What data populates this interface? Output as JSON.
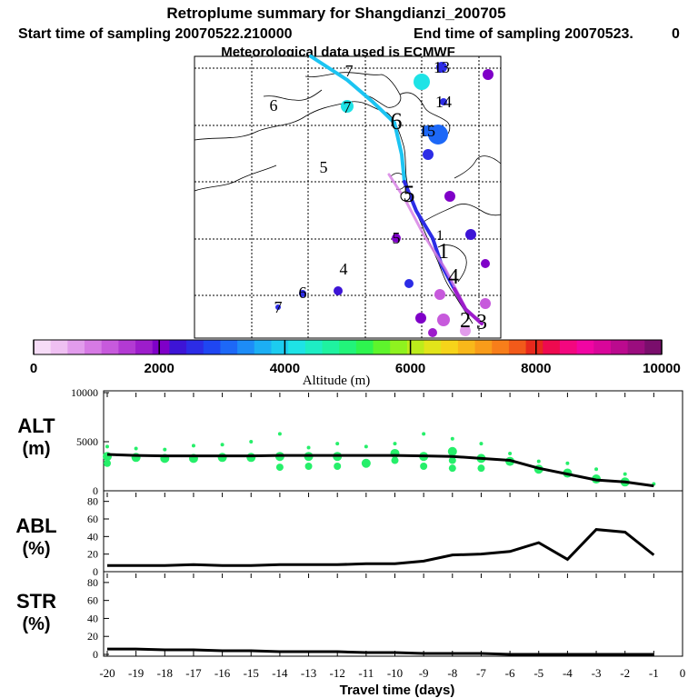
{
  "title": "Retroplume summary for Shangdianzi_200705",
  "subtitle_start": "Start time of sampling 20070522.210000",
  "subtitle_end": "End time of sampling 20070523.",
  "subtitle_end_tail": "0",
  "met_note": "Meteorological data used is ECMWF",
  "chart_data": [
    {
      "type": "map",
      "title": "Retroplume trajectory (day markers = days back)",
      "day_labels": [
        {
          "text": "7",
          "where": "top-left"
        },
        {
          "text": "6",
          "where": "upper-left"
        },
        {
          "text": "7",
          "where": "upper-left"
        },
        {
          "text": "6",
          "where": "upper-center"
        },
        {
          "text": "5",
          "where": "center-left"
        },
        {
          "text": "5",
          "where": "center"
        },
        {
          "text": "4",
          "where": "lower-left"
        },
        {
          "text": "6",
          "where": "lower-left"
        },
        {
          "text": "7",
          "where": "bottom-left"
        },
        {
          "text": "1",
          "where": "center-right"
        },
        {
          "text": "1",
          "where": "center-right"
        },
        {
          "text": "4",
          "where": "lower-right"
        },
        {
          "text": "2",
          "where": "bottom-right"
        },
        {
          "text": "3",
          "where": "bottom-right"
        },
        {
          "text": "13",
          "where": "top-right"
        },
        {
          "text": "14",
          "where": "top-right"
        },
        {
          "text": "15",
          "where": "upper-right"
        },
        {
          "text": "5",
          "where": "lower-center"
        }
      ]
    },
    {
      "type": "colorbar",
      "xlabel": "Altitude (m)",
      "ticks": [
        0,
        2000,
        4000,
        6000,
        8000,
        10000
      ],
      "range": [
        0,
        10000
      ],
      "colors": [
        "#f6dcf7",
        "#efc0f2",
        "#e29cec",
        "#d67ae4",
        "#c75adc",
        "#b33ad3",
        "#9d1dcb",
        "#7f00c8",
        "#3d14d6",
        "#2c2ce6",
        "#1f46f2",
        "#1d68f7",
        "#1d8cf7",
        "#1caff4",
        "#1cccf0",
        "#1ee3e6",
        "#1eedc4",
        "#1ff2a0",
        "#22f47a",
        "#2ef54f",
        "#5ef52c",
        "#8ff21f",
        "#bdec1b",
        "#e2e41a",
        "#f6d41a",
        "#f9b81a",
        "#f99c1a",
        "#f87e1a",
        "#f25a1a",
        "#e8291d",
        "#ee0a4f",
        "#f3077f",
        "#f105a3",
        "#d9069a",
        "#bb0a8e",
        "#9b0d7e",
        "#7a0e6c"
      ]
    },
    {
      "type": "line",
      "ylabel": "ALT (m)",
      "ylim": [
        0,
        10000
      ],
      "yticks": [
        0,
        5000,
        10000
      ],
      "x": [
        -20,
        -19,
        -18,
        -17,
        -16,
        -15,
        -14,
        -13,
        -12,
        -11,
        -10,
        -9,
        -8,
        -7,
        -6,
        -5,
        -4,
        -3,
        -2,
        -1
      ],
      "series": [
        {
          "name": "mean altitude",
          "values": [
            3700,
            3600,
            3550,
            3550,
            3550,
            3550,
            3600,
            3600,
            3600,
            3600,
            3600,
            3550,
            3500,
            3300,
            3100,
            2300,
            1700,
            1100,
            900,
            500
          ]
        }
      ],
      "scatter_color": "#26ef6a",
      "scatter_values": [
        [
          4500,
          3500,
          2800
        ],
        [
          4300,
          3400
        ],
        [
          4200,
          3300
        ],
        [
          4600,
          3300
        ],
        [
          4700,
          3400
        ],
        [
          5000,
          3400
        ],
        [
          5800,
          3500,
          2400
        ],
        [
          4400,
          3500,
          2500
        ],
        [
          4800,
          3500,
          2500
        ],
        [
          4500,
          2800
        ],
        [
          4800,
          3800,
          3100
        ],
        [
          5800,
          3500,
          2500
        ],
        [
          5300,
          4000,
          3100,
          2300
        ],
        [
          4800,
          3300,
          2300
        ],
        [
          3800,
          3000
        ],
        [
          3000,
          2200
        ],
        [
          2800,
          1800
        ],
        [
          2200,
          1200
        ],
        [
          1700,
          900
        ],
        [
          700
        ]
      ]
    },
    {
      "type": "line",
      "ylabel": "ABL (%)",
      "ylim": [
        0,
        90
      ],
      "yticks": [
        0,
        20,
        40,
        60,
        80
      ],
      "x": [
        -20,
        -19,
        -18,
        -17,
        -16,
        -15,
        -14,
        -13,
        -12,
        -11,
        -10,
        -9,
        -8,
        -7,
        -6,
        -5,
        -4,
        -3,
        -2,
        -1
      ],
      "series": [
        {
          "name": "ABL fraction",
          "values": [
            7,
            7,
            7,
            8,
            7,
            7,
            8,
            8,
            8,
            9,
            9,
            12,
            19,
            20,
            23,
            33,
            14,
            48,
            45,
            19
          ]
        }
      ]
    },
    {
      "type": "line",
      "ylabel": "STR (%)",
      "ylim": [
        0,
        90
      ],
      "yticks": [
        0,
        20,
        40,
        60,
        80
      ],
      "xlabel": "Travel time (days)",
      "xticks": [
        -20,
        -19,
        -18,
        -17,
        -16,
        -15,
        -14,
        -13,
        -12,
        -11,
        -10,
        -9,
        -8,
        -7,
        -6,
        -5,
        -4,
        -3,
        -2,
        -1,
        0
      ],
      "x": [
        -20,
        -19,
        -18,
        -17,
        -16,
        -15,
        -14,
        -13,
        -12,
        -11,
        -10,
        -9,
        -8,
        -7,
        -6,
        -5,
        -4,
        -3,
        -2,
        -1
      ],
      "series": [
        {
          "name": "STR fraction",
          "values": [
            6,
            6,
            5,
            5,
            4,
            4,
            3,
            3,
            3,
            2,
            2,
            1,
            1,
            1,
            0,
            0,
            0,
            0,
            0,
            0
          ]
        }
      ]
    }
  ]
}
